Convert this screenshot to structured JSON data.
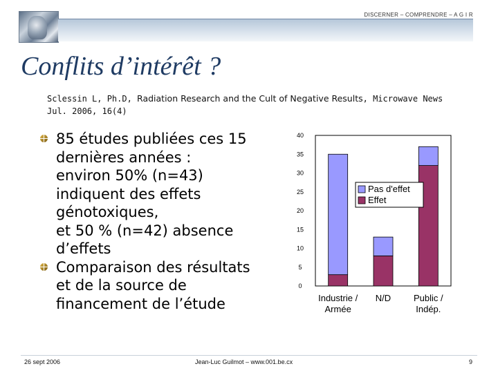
{
  "header": {
    "tagline": "DISCERNER – COMPRENDRE – A G I R"
  },
  "title": "Conflits d’intérêt ?",
  "reference": {
    "authors": "Sclessin L, Ph.D, ",
    "article": "Radiation Research and the Cult of Negative Results",
    "journal": ", Microwave News Jul. 2006, 16(4)"
  },
  "bullets": [
    {
      "text": "85 études publiées ces 15\ndernières années :\nenviron 50% (n=43)\nindiquent des effets\ngénotoxiques,\net 50 % (n=42) absence\nd’effets"
    },
    {
      "text": "Comparaison des résultats\net de la source de\nfinancement de l’étude"
    }
  ],
  "chart_data": {
    "type": "bar",
    "stacked": true,
    "categories": [
      "Industrie / Armée",
      "N/D",
      "Public / Indép."
    ],
    "category_lines": [
      [
        "Industrie /",
        "Armée"
      ],
      [
        "N/D"
      ],
      [
        "Public /",
        "Indép."
      ]
    ],
    "series": [
      {
        "name": "Effet",
        "values": [
          3,
          8,
          32
        ],
        "color": "#993366"
      },
      {
        "name": "Pas d'effet",
        "values": [
          32,
          5,
          5
        ],
        "color": "#9999ff"
      }
    ],
    "legend_order": [
      "Pas d'effet",
      "Effet"
    ],
    "legend_position": "right",
    "yticks": [
      "0",
      "5",
      "10",
      "15",
      "20",
      "25",
      "30",
      "35",
      "40"
    ],
    "ylim": [
      0,
      40
    ],
    "grid": false
  },
  "footer": {
    "date": "26 sept 2006",
    "author": "Jean-Luc Guilmot – www.001.be.cx",
    "page": "9"
  }
}
